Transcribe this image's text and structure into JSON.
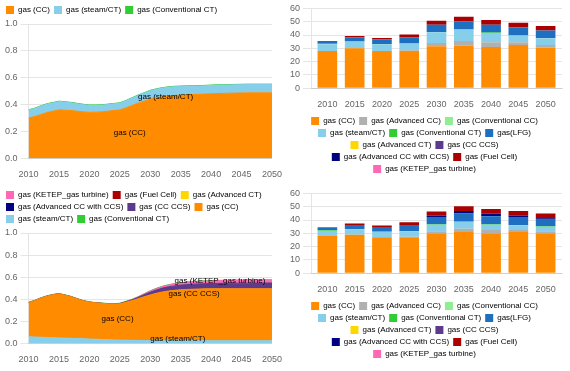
{
  "chart_data": [
    {
      "type": "area",
      "stacked": true,
      "grid": "y",
      "legend": "upper left",
      "x": [
        2010,
        2011,
        2012,
        2013,
        2014,
        2015,
        2016,
        2017,
        2018,
        2019,
        2020,
        2021,
        2022,
        2023,
        2024,
        2025,
        2026,
        2027,
        2028,
        2029,
        2030,
        2031,
        2032,
        2033,
        2034,
        2035,
        2036,
        2037,
        2038,
        2039,
        2040,
        2041,
        2042,
        2043,
        2044,
        2045,
        2046,
        2047,
        2048,
        2049,
        2050
      ],
      "xlim": [
        2010,
        2050
      ],
      "xticks": [
        2010,
        2015,
        2020,
        2025,
        2030,
        2035,
        2040,
        2045,
        2050
      ],
      "ylim": [
        0,
        1
      ],
      "yticks": [
        {
          "value": 0,
          "label": "0.0"
        },
        0.2,
        0.4,
        0.6,
        0.8,
        {
          "value": 1,
          "label": "1.0"
        }
      ],
      "series": [
        {
          "name": "gas (CC)",
          "color": "#FF8C00",
          "values": [
            0.3,
            0.31,
            0.325,
            0.34,
            0.35,
            0.36,
            0.358,
            0.355,
            0.35,
            0.345,
            0.342,
            0.343,
            0.345,
            0.35,
            0.355,
            0.36,
            0.375,
            0.393,
            0.41,
            0.425,
            0.44,
            0.45,
            0.458,
            0.464,
            0.468,
            0.47,
            0.472,
            0.474,
            0.476,
            0.478,
            0.48,
            0.482,
            0.483,
            0.484,
            0.485,
            0.486,
            0.487,
            0.487,
            0.487,
            0.487,
            0.487
          ]
        },
        {
          "name": "gas (steam/CT)",
          "color": "#87CEEB",
          "values": [
            0.058,
            0.06,
            0.062,
            0.063,
            0.062,
            0.062,
            0.06,
            0.058,
            0.056,
            0.054,
            0.052,
            0.051,
            0.05,
            0.05,
            0.05,
            0.05,
            0.052,
            0.055,
            0.058,
            0.06,
            0.063,
            0.064,
            0.065,
            0.065,
            0.065,
            0.065,
            0.064,
            0.063,
            0.062,
            0.062,
            0.062,
            0.062,
            0.062,
            0.062,
            0.062,
            0.062,
            0.062,
            0.062,
            0.062,
            0.062,
            0.062
          ]
        },
        {
          "name": "gas (Conventional CT)",
          "color": "#32CD32",
          "values": [
            0.003,
            0.003,
            0.003,
            0.003,
            0.003,
            0.003,
            0.003,
            0.003,
            0.003,
            0.003,
            0.003,
            0.003,
            0.003,
            0.003,
            0.003,
            0.003,
            0.003,
            0.003,
            0.003,
            0.003,
            0.003,
            0.003,
            0.003,
            0.003,
            0.003,
            0.003,
            0.003,
            0.003,
            0.003,
            0.003,
            0.003,
            0.003,
            0.003,
            0.003,
            0.003,
            0.003,
            0.003,
            0.003,
            0.003,
            0.003,
            0.003
          ]
        }
      ],
      "annotations": [
        {
          "text": "gas (steam/CT)",
          "x": 2028,
          "y": 0.44
        },
        {
          "text": "gas (CC)",
          "x": 2024,
          "y": 0.17
        }
      ]
    },
    {
      "type": "bar",
      "stacked": true,
      "grid": "y",
      "legend": "lower center",
      "x": [
        2010,
        2015,
        2020,
        2025,
        2030,
        2035,
        2040,
        2045,
        2050
      ],
      "xlim": [
        2007,
        2053
      ],
      "xticks": [
        2010,
        2015,
        2020,
        2025,
        2030,
        2035,
        2040,
        2045,
        2050
      ],
      "ylim": [
        0,
        60
      ],
      "yticks": [
        0,
        10,
        20,
        30,
        40,
        50,
        60
      ],
      "series": [
        {
          "name": "gas (CC)",
          "color": "#FF8C00",
          "values": [
            28.0,
            30.0,
            28.0,
            28.0,
            31.5,
            32.0,
            31.0,
            32.5,
            30.5
          ]
        },
        {
          "name": "gas (Advanced CC)",
          "color": "#B0B0B0",
          "values": [
            0.0,
            0.0,
            0.0,
            0.5,
            2.5,
            3.5,
            3.5,
            2.0,
            2.0
          ]
        },
        {
          "name": "gas (Conventional CC)",
          "color": "#90EE90",
          "values": [
            0.0,
            0.0,
            0.0,
            0.0,
            0.0,
            0.0,
            0.0,
            0.0,
            0.0
          ]
        },
        {
          "name": "gas (steam/CT)",
          "color": "#87CEEB",
          "values": [
            5.0,
            5.0,
            5.0,
            5.0,
            8.0,
            8.5,
            7.0,
            5.0,
            5.0
          ]
        },
        {
          "name": "gas (Conventional CT)",
          "color": "#32CD32",
          "values": [
            0.5,
            0.3,
            0.3,
            0.3,
            0.3,
            0.3,
            0.3,
            0.3,
            0.3
          ]
        },
        {
          "name": "gas(LFG)",
          "color": "#1E6FBF",
          "values": [
            2.0,
            3.0,
            3.5,
            4.5,
            5.5,
            6.0,
            6.0,
            6.0,
            5.5
          ]
        },
        {
          "name": "gas (Advanced CT)",
          "color": "#FFD700",
          "values": [
            0.0,
            0.0,
            0.0,
            0.0,
            0.0,
            0.0,
            0.0,
            0.0,
            0.0
          ]
        },
        {
          "name": "gas (CC CCS)",
          "color": "#5C3A8C",
          "values": [
            0.0,
            0.0,
            0.0,
            0.0,
            0.0,
            0.0,
            0.0,
            0.0,
            0.0
          ]
        },
        {
          "name": "gas (Advanced CC with CCS)",
          "color": "#000080",
          "values": [
            0.0,
            0.0,
            0.0,
            0.0,
            0.0,
            0.0,
            0.0,
            0.0,
            0.0
          ]
        },
        {
          "name": "gas (Fuel Cell)",
          "color": "#AA0000",
          "values": [
            0.0,
            1.0,
            1.0,
            2.0,
            3.0,
            3.5,
            3.5,
            3.5,
            3.5
          ]
        },
        {
          "name": "gas (KETEP_gas turbine)",
          "color": "#FF69B4",
          "values": [
            0.0,
            0.0,
            0.0,
            0.0,
            0.0,
            0.0,
            0.0,
            0.0,
            0.0
          ]
        }
      ]
    },
    {
      "type": "area",
      "stacked": true,
      "grid": "y",
      "legend": "upper left",
      "x": [
        2010,
        2011,
        2012,
        2013,
        2014,
        2015,
        2016,
        2017,
        2018,
        2019,
        2020,
        2021,
        2022,
        2023,
        2024,
        2025,
        2026,
        2027,
        2028,
        2029,
        2030,
        2031,
        2032,
        2033,
        2034,
        2035,
        2036,
        2037,
        2038,
        2039,
        2040,
        2041,
        2042,
        2043,
        2044,
        2045,
        2046,
        2047,
        2048,
        2049,
        2050
      ],
      "xlim": [
        2010,
        2050
      ],
      "xticks": [
        2010,
        2015,
        2020,
        2025,
        2030,
        2035,
        2040,
        2045,
        2050
      ],
      "ylim": [
        0,
        1
      ],
      "yticks": [
        {
          "value": 0,
          "label": "0.0"
        },
        0.2,
        0.4,
        0.6,
        0.8,
        {
          "value": 1,
          "label": "1.0"
        }
      ],
      "series": [
        {
          "name": "gas (steam/CT)",
          "color": "#87CEEB",
          "values": [
            0.058,
            0.056,
            0.054,
            0.052,
            0.05,
            0.048,
            0.046,
            0.044,
            0.042,
            0.04,
            0.038,
            0.036,
            0.034,
            0.032,
            0.03,
            0.028,
            0.027,
            0.026,
            0.025,
            0.024,
            0.023,
            0.023,
            0.022,
            0.022,
            0.022,
            0.022,
            0.022,
            0.022,
            0.022,
            0.022,
            0.022,
            0.022,
            0.022,
            0.022,
            0.022,
            0.022,
            0.022,
            0.022,
            0.022,
            0.022,
            0.022
          ]
        },
        {
          "name": "gas (CC)",
          "color": "#FF8C00",
          "values": [
            0.31,
            0.33,
            0.355,
            0.375,
            0.39,
            0.4,
            0.39,
            0.378,
            0.36,
            0.345,
            0.335,
            0.33,
            0.328,
            0.325,
            0.325,
            0.33,
            0.345,
            0.36,
            0.378,
            0.398,
            0.415,
            0.43,
            0.443,
            0.452,
            0.458,
            0.463,
            0.466,
            0.468,
            0.47,
            0.471,
            0.472,
            0.472,
            0.472,
            0.472,
            0.472,
            0.472,
            0.472,
            0.472,
            0.472,
            0.472,
            0.472
          ]
        },
        {
          "name": "gas (CC CCS)",
          "color": "#5C3A8C",
          "values": [
            0.0,
            0.0,
            0.0,
            0.0,
            0.0,
            0.0,
            0.0,
            0.0,
            0.0,
            0.0,
            0.0,
            0.0,
            0.0,
            0.0,
            0.0,
            0.002,
            0.004,
            0.007,
            0.012,
            0.018,
            0.025,
            0.03,
            0.035,
            0.038,
            0.04,
            0.042,
            0.044,
            0.045,
            0.046,
            0.047,
            0.048,
            0.049,
            0.05,
            0.05,
            0.051,
            0.051,
            0.051,
            0.052,
            0.052,
            0.052,
            0.052
          ]
        },
        {
          "name": "gas (KETEP_gas turbine)",
          "color": "#FF69B4",
          "values": [
            0.0,
            0.0,
            0.0,
            0.0,
            0.0,
            0.0,
            0.0,
            0.0,
            0.0,
            0.0,
            0.0,
            0.0,
            0.0,
            0.0,
            0.0,
            0.0,
            0.001,
            0.002,
            0.004,
            0.006,
            0.01,
            0.012,
            0.014,
            0.016,
            0.018,
            0.019,
            0.02,
            0.021,
            0.022,
            0.023,
            0.023,
            0.024,
            0.024,
            0.025,
            0.025,
            0.025,
            0.025,
            0.026,
            0.026,
            0.026,
            0.026
          ]
        },
        {
          "name": "gas (Conventional CT)",
          "color": "#32CD32",
          "values": [
            0.003,
            0.003,
            0.003,
            0.003,
            0.003,
            0.003,
            0.003,
            0.003,
            0.003,
            0.003,
            0.003,
            0.003,
            0.003,
            0.003,
            0.003,
            0.003,
            0.003,
            0.003,
            0.003,
            0.003,
            0.003,
            0.003,
            0.003,
            0.003,
            0.003,
            0.003,
            0.003,
            0.003,
            0.003,
            0.003,
            0.003,
            0.003,
            0.003,
            0.003,
            0.003,
            0.003,
            0.003,
            0.003,
            0.003,
            0.003,
            0.003
          ]
        }
      ],
      "legend_entries": [
        {
          "name": "gas (KETEP_gas turbine)",
          "color": "#FF69B4"
        },
        {
          "name": "gas (Fuel Cell)",
          "color": "#AA0000"
        },
        {
          "name": "gas (Advanced CT)",
          "color": "#FFD700"
        },
        {
          "name": "gas (Advanced CC with CCS)",
          "color": "#000080"
        },
        {
          "name": "gas (CC CCS)",
          "color": "#5C3A8C"
        },
        {
          "name": "gas (CC)",
          "color": "#FF8C00"
        },
        {
          "name": "gas (steam/CT)",
          "color": "#87CEEB"
        },
        {
          "name": "gas (Conventional CT)",
          "color": "#32CD32"
        }
      ],
      "annotations": [
        {
          "text": "gas (steam/CT)",
          "x": 2030,
          "y": 0.022
        },
        {
          "text": "gas (CC)",
          "x": 2022,
          "y": 0.2
        },
        {
          "text": "gas (CC CCS)",
          "x": 2033,
          "y": 0.43
        },
        {
          "text": "gas (KETEP_gas turbine)",
          "x": 2034,
          "y": 0.545
        }
      ]
    },
    {
      "type": "bar",
      "stacked": true,
      "grid": "y",
      "legend": "lower center",
      "x": [
        2010,
        2015,
        2020,
        2025,
        2030,
        2035,
        2040,
        2045,
        2050
      ],
      "xlim": [
        2007,
        2053
      ],
      "xticks": [
        2010,
        2015,
        2020,
        2025,
        2030,
        2035,
        2040,
        2045,
        2050
      ],
      "ylim": [
        0,
        60
      ],
      "yticks": [
        0,
        10,
        20,
        30,
        40,
        50,
        60
      ],
      "series": [
        {
          "name": "gas (CC)",
          "color": "#FF8C00",
          "values": [
            28.0,
            29.0,
            27.0,
            27.0,
            30.0,
            31.0,
            30.0,
            31.0,
            30.0
          ]
        },
        {
          "name": "gas (Advanced CC)",
          "color": "#B0B0B0",
          "values": [
            0.0,
            0.0,
            0.0,
            0.5,
            1.5,
            2.5,
            2.5,
            1.5,
            1.5
          ]
        },
        {
          "name": "gas (Conventional CC)",
          "color": "#90EE90",
          "values": [
            0.0,
            0.0,
            0.0,
            0.0,
            0.0,
            0.0,
            0.0,
            0.0,
            0.0
          ]
        },
        {
          "name": "gas (steam/CT)",
          "color": "#87CEEB",
          "values": [
            4.0,
            4.0,
            4.0,
            4.0,
            5.0,
            5.0,
            4.0,
            3.5,
            3.5
          ]
        },
        {
          "name": "gas (Conventional CT)",
          "color": "#32CD32",
          "values": [
            0.5,
            0.3,
            0.3,
            0.3,
            0.3,
            0.3,
            0.3,
            0.3,
            0.3
          ]
        },
        {
          "name": "gas(LFG)",
          "color": "#1E6FBF",
          "values": [
            2.0,
            3.0,
            3.5,
            4.5,
            5.5,
            6.0,
            6.0,
            6.0,
            5.5
          ]
        },
        {
          "name": "gas (Advanced CT)",
          "color": "#FFD700",
          "values": [
            0.0,
            0.0,
            0.0,
            0.0,
            0.0,
            0.0,
            0.0,
            0.0,
            0.0
          ]
        },
        {
          "name": "gas (CC CCS)",
          "color": "#5C3A8C",
          "values": [
            0.0,
            0.0,
            0.0,
            0.0,
            0.0,
            0.0,
            0.0,
            0.0,
            0.0
          ]
        },
        {
          "name": "gas (Advanced CC with CCS)",
          "color": "#000080",
          "values": [
            0.0,
            0.0,
            0.0,
            0.0,
            1.0,
            2.0,
            2.0,
            1.0,
            0.5
          ]
        },
        {
          "name": "gas (Fuel Cell)",
          "color": "#AA0000",
          "values": [
            0.0,
            1.0,
            1.0,
            2.0,
            3.0,
            3.5,
            3.5,
            3.5,
            3.5
          ]
        },
        {
          "name": "gas (KETEP_gas turbine)",
          "color": "#FF69B4",
          "values": [
            0.0,
            0.0,
            0.0,
            0.0,
            0.0,
            0.0,
            0.0,
            0.0,
            0.0
          ]
        }
      ]
    }
  ]
}
